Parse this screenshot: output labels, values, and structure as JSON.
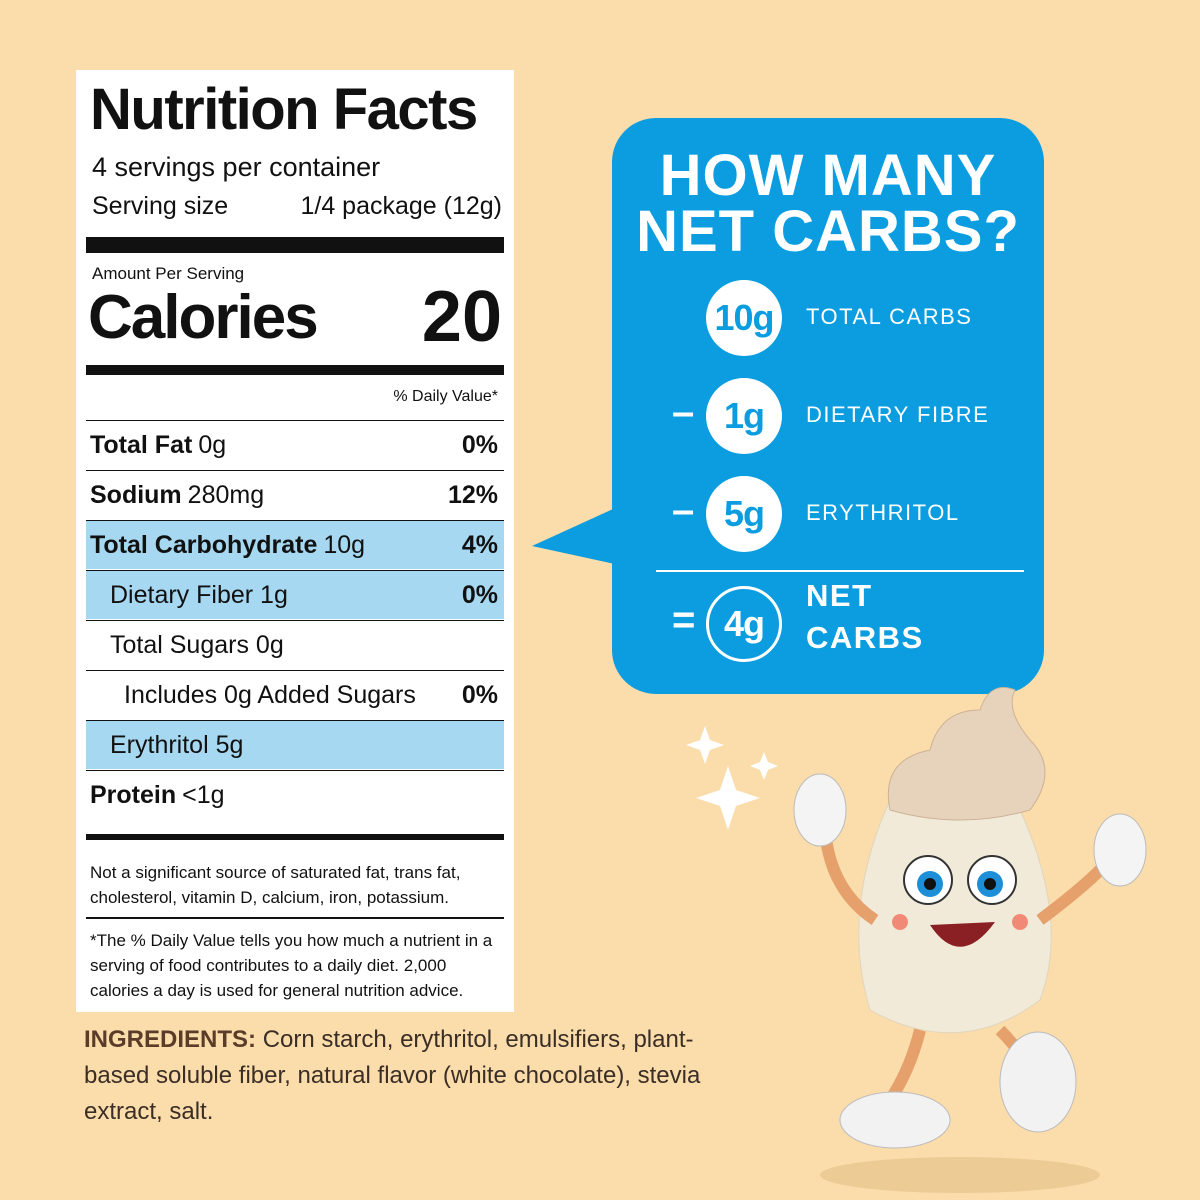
{
  "label": {
    "title": "Nutrition Facts",
    "servings": "4 servings per container",
    "serving_size_label": "Serving size",
    "serving_size_value": "1/4 package (12g)",
    "amount_per_serving": "Amount Per Serving",
    "calories_label": "Calories",
    "calories_value": "20",
    "daily_value_header": "% Daily Value*",
    "rows": [
      {
        "name": "Total Fat",
        "amount": "0g",
        "dv": "0%"
      },
      {
        "name": "Sodium",
        "amount": "280mg",
        "dv": "12%"
      },
      {
        "name": "Total Carbohydrate",
        "amount": "10g",
        "dv": "4%"
      },
      {
        "text": "Dietary Fiber 1g",
        "dv": "0%"
      },
      {
        "text": "Total Sugars 0g"
      },
      {
        "text": "Includes 0g Added Sugars",
        "dv": "0%"
      },
      {
        "text": "Erythritol 5g"
      },
      {
        "name": "Protein",
        "amount": "<1g"
      }
    ],
    "footnote_1": "Not a significant source of saturated fat, trans fat, cholesterol, vitamin D, calcium, iron, potassium.",
    "footnote_2": "*The % Daily Value tells you how much a nutrient in a serving of food contributes to a daily diet. 2,000 calories a day is used for general nutrition advice."
  },
  "bubble": {
    "title_lines": [
      "HOW MANY",
      "NET CARBS?"
    ],
    "items": [
      {
        "amount": "10g",
        "label": "TOTAL CARBS"
      },
      {
        "operator": "–",
        "amount": "1g",
        "label": "DIETARY FIBRE"
      },
      {
        "operator": "–",
        "amount": "5g",
        "label": "ERYTHRITOL"
      },
      {
        "operator": "=",
        "amount": "4g",
        "label_lines": [
          "NET",
          "CARBS"
        ]
      }
    ]
  },
  "ingredients": {
    "heading": "INGREDIENTS:",
    "text": "Corn starch, erythritol, emulsifiers, plant-based soluble fiber, natural flavor (white chocolate), stevia extract, salt."
  }
}
